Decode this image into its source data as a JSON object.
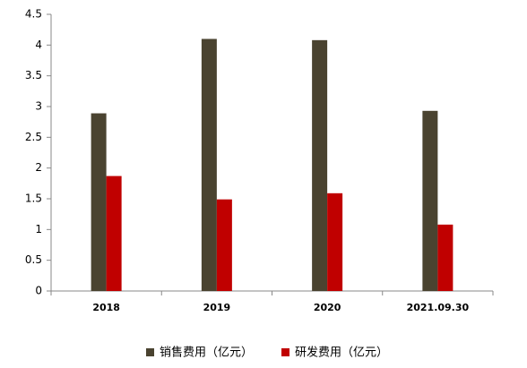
{
  "chart_data": {
    "type": "bar",
    "categories": [
      "2018",
      "2019",
      "2020",
      "2021.09.30"
    ],
    "series": [
      {
        "name": "销售费用（亿元）",
        "color": "#4a4330",
        "values": [
          2.89,
          4.1,
          4.08,
          2.93
        ]
      },
      {
        "name": "研发费用（亿元）",
        "color": "#c00000",
        "values": [
          1.87,
          1.49,
          1.59,
          1.08
        ]
      }
    ],
    "ylim": [
      0,
      4.5
    ],
    "yticks": [
      0,
      0.5,
      1,
      1.5,
      2,
      2.5,
      3,
      3.5,
      4,
      4.5
    ],
    "grid": false,
    "legend": "bottom"
  }
}
